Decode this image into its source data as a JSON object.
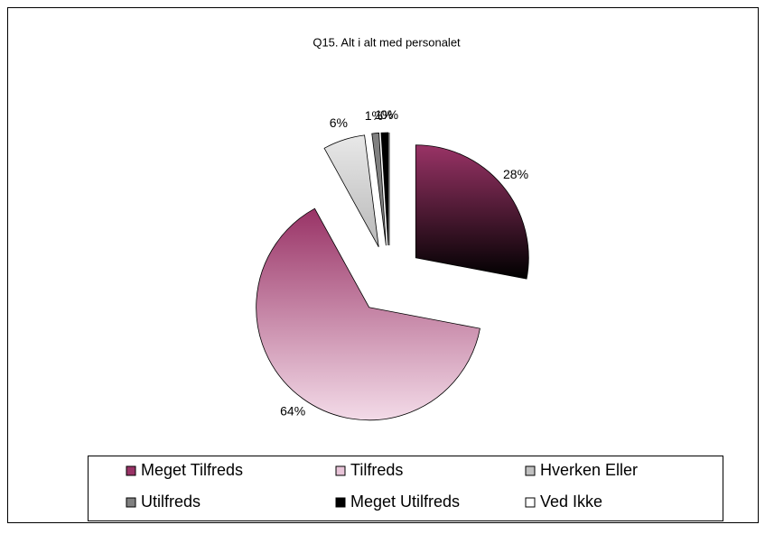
{
  "chart_data": {
    "type": "pie",
    "title": "Q15. Alt i alt med personalet",
    "categories": [
      "Meget Tilfreds",
      "Tilfreds",
      "Hverken Eller",
      "Utilfreds",
      "Meget Utilfreds",
      "Ved Ikke"
    ],
    "values": [
      28,
      64,
      6,
      1,
      1,
      0
    ],
    "value_labels": [
      "28%",
      "64%",
      "6%",
      "1%",
      "1%",
      "0%"
    ],
    "colors": [
      "#993366",
      "#e8c4d8",
      "#c0c0c0",
      "#808080",
      "#000000",
      "#ffffff"
    ],
    "legend": "bottom"
  }
}
